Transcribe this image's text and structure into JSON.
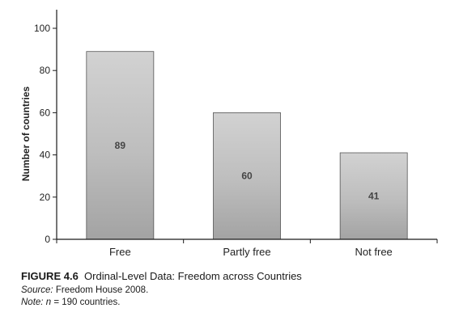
{
  "chart_data": {
    "type": "bar",
    "categories": [
      "Free",
      "Partly free",
      "Not free"
    ],
    "values": [
      89,
      60,
      41
    ],
    "title": "",
    "xlabel": "",
    "ylabel": "Number of countries",
    "ylim": [
      0,
      100
    ],
    "yticks": [
      0,
      20,
      40,
      60,
      80,
      100
    ],
    "grid": false,
    "data_labels": [
      "89",
      "60",
      "41"
    ]
  },
  "caption": {
    "figure_number": "FIGURE 4.6",
    "figure_title": "Ordinal-Level Data: Freedom across Countries",
    "source_label": "Source:",
    "source_text": "Freedom House 2008.",
    "note_label": "Note:",
    "note_n": "n",
    "note_text": "= 190 countries."
  },
  "colors": {
    "bar_top": "#cfcfcf",
    "bar_bottom": "#9a9a9a",
    "axis": "#1a1a1a"
  }
}
